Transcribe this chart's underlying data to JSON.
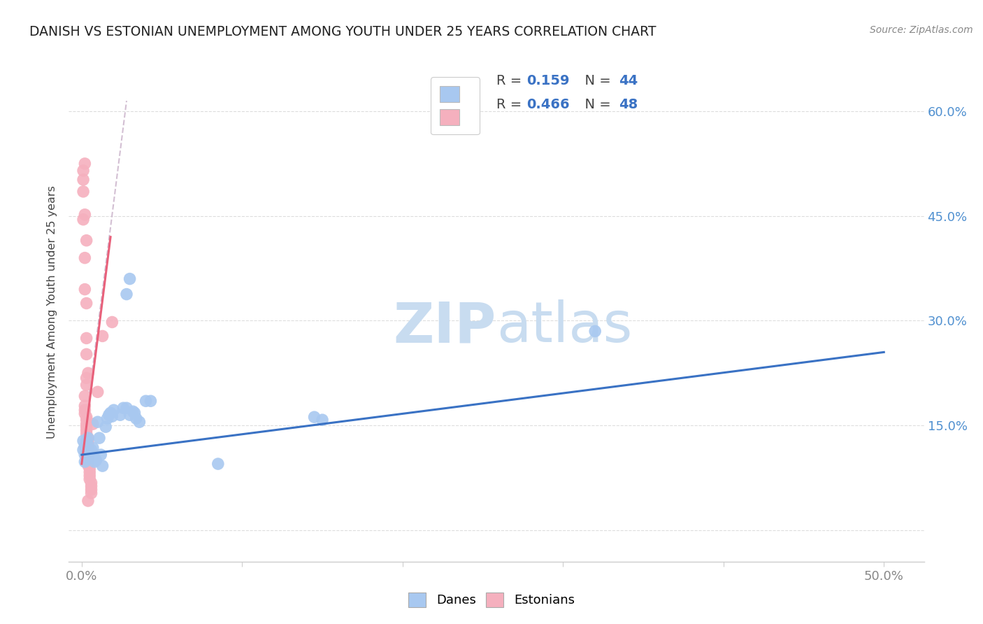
{
  "title": "DANISH VS ESTONIAN UNEMPLOYMENT AMONG YOUTH UNDER 25 YEARS CORRELATION CHART",
  "source": "Source: ZipAtlas.com",
  "ylabel": "Unemployment Among Youth under 25 years",
  "xlim": [
    -0.008,
    0.525
  ],
  "ylim": [
    -0.045,
    0.67
  ],
  "xticks": [
    0.0,
    0.1,
    0.2,
    0.3,
    0.4,
    0.5
  ],
  "xticklabels": [
    "0.0%",
    "",
    "",
    "",
    "",
    "50.0%"
  ],
  "yticks": [
    0.0,
    0.15,
    0.3,
    0.45,
    0.6
  ],
  "yticklabels_right": [
    "",
    "15.0%",
    "30.0%",
    "45.0%",
    "60.0%"
  ],
  "danes_R": 0.159,
  "danes_N": 44,
  "estonians_R": 0.466,
  "estonians_N": 48,
  "danes_color": "#a8c8f0",
  "estonians_color": "#f5b0be",
  "danes_line_color": "#3a72c4",
  "estonians_line_color": "#e8607a",
  "danes_line": [
    [
      0.0,
      0.108
    ],
    [
      0.5,
      0.255
    ]
  ],
  "estonians_line": [
    [
      0.0,
      0.095
    ],
    [
      0.018,
      0.42
    ]
  ],
  "dashed_line": [
    [
      0.0,
      0.108
    ],
    [
      0.028,
      0.615
    ]
  ],
  "dashed_color": "#c8b0c8",
  "danes_scatter": [
    [
      0.001,
      0.128
    ],
    [
      0.001,
      0.115
    ],
    [
      0.002,
      0.12
    ],
    [
      0.002,
      0.108
    ],
    [
      0.002,
      0.098
    ],
    [
      0.003,
      0.12
    ],
    [
      0.003,
      0.115
    ],
    [
      0.003,
      0.128
    ],
    [
      0.003,
      0.108
    ],
    [
      0.004,
      0.132
    ],
    [
      0.004,
      0.102
    ],
    [
      0.005,
      0.112
    ],
    [
      0.006,
      0.108
    ],
    [
      0.006,
      0.115
    ],
    [
      0.007,
      0.118
    ],
    [
      0.008,
      0.098
    ],
    [
      0.008,
      0.103
    ],
    [
      0.009,
      0.1
    ],
    [
      0.01,
      0.155
    ],
    [
      0.011,
      0.132
    ],
    [
      0.012,
      0.108
    ],
    [
      0.013,
      0.092
    ],
    [
      0.015,
      0.148
    ],
    [
      0.016,
      0.16
    ],
    [
      0.017,
      0.165
    ],
    [
      0.018,
      0.168
    ],
    [
      0.019,
      0.163
    ],
    [
      0.02,
      0.172
    ],
    [
      0.024,
      0.165
    ],
    [
      0.026,
      0.175
    ],
    [
      0.028,
      0.175
    ],
    [
      0.03,
      0.165
    ],
    [
      0.032,
      0.17
    ],
    [
      0.033,
      0.168
    ],
    [
      0.034,
      0.16
    ],
    [
      0.036,
      0.155
    ],
    [
      0.04,
      0.185
    ],
    [
      0.043,
      0.185
    ],
    [
      0.085,
      0.095
    ],
    [
      0.145,
      0.162
    ],
    [
      0.15,
      0.158
    ],
    [
      0.32,
      0.285
    ],
    [
      0.028,
      0.338
    ],
    [
      0.03,
      0.36
    ]
  ],
  "estonians_scatter": [
    [
      0.001,
      0.515
    ],
    [
      0.001,
      0.485
    ],
    [
      0.002,
      0.525
    ],
    [
      0.001,
      0.445
    ],
    [
      0.002,
      0.39
    ],
    [
      0.002,
      0.345
    ],
    [
      0.003,
      0.325
    ],
    [
      0.003,
      0.275
    ],
    [
      0.003,
      0.252
    ],
    [
      0.003,
      0.218
    ],
    [
      0.003,
      0.208
    ],
    [
      0.002,
      0.192
    ],
    [
      0.002,
      0.178
    ],
    [
      0.002,
      0.172
    ],
    [
      0.002,
      0.167
    ],
    [
      0.003,
      0.162
    ],
    [
      0.003,
      0.158
    ],
    [
      0.003,
      0.152
    ],
    [
      0.003,
      0.148
    ],
    [
      0.003,
      0.143
    ],
    [
      0.003,
      0.138
    ],
    [
      0.004,
      0.132
    ],
    [
      0.004,
      0.128
    ],
    [
      0.004,
      0.123
    ],
    [
      0.004,
      0.118
    ],
    [
      0.004,
      0.113
    ],
    [
      0.004,
      0.108
    ],
    [
      0.004,
      0.103
    ],
    [
      0.004,
      0.098
    ],
    [
      0.004,
      0.093
    ],
    [
      0.005,
      0.088
    ],
    [
      0.005,
      0.083
    ],
    [
      0.005,
      0.078
    ],
    [
      0.005,
      0.073
    ],
    [
      0.006,
      0.068
    ],
    [
      0.006,
      0.063
    ],
    [
      0.006,
      0.058
    ],
    [
      0.006,
      0.053
    ],
    [
      0.007,
      0.152
    ],
    [
      0.01,
      0.198
    ],
    [
      0.013,
      0.278
    ],
    [
      0.019,
      0.298
    ],
    [
      0.001,
      0.502
    ],
    [
      0.002,
      0.452
    ],
    [
      0.003,
      0.415
    ],
    [
      0.004,
      0.225
    ],
    [
      0.005,
      0.112
    ],
    [
      0.004,
      0.042
    ]
  ],
  "watermark_zip": "ZIP",
  "watermark_atlas": "atlas",
  "watermark_color": "#dce8f5",
  "background_color": "#ffffff",
  "grid_color": "#dddddd",
  "title_color": "#222222",
  "source_color": "#888888",
  "ylabel_color": "#444444",
  "tick_color": "#888888",
  "right_tick_color": "#5090d0"
}
